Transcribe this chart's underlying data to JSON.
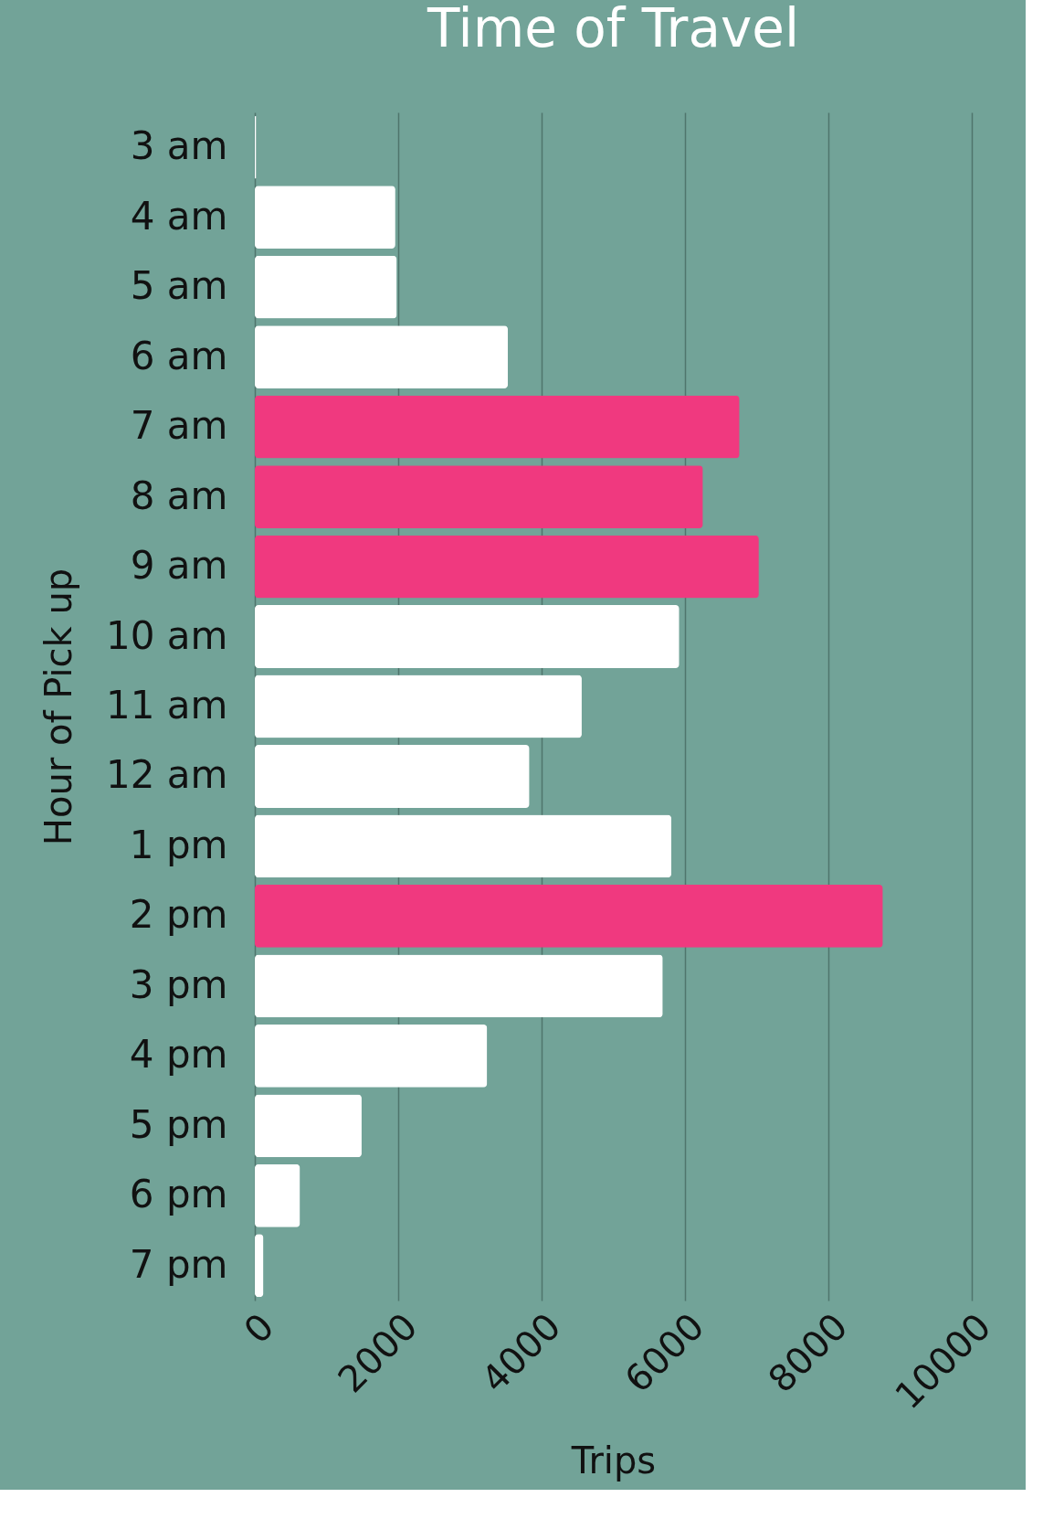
{
  "chart_data": {
    "type": "bar",
    "orientation": "horizontal",
    "title": "Time of Travel",
    "xlabel": "Trips",
    "ylabel": "Hour of Pick up",
    "categories": [
      "3 am",
      "4 am",
      "5 am",
      "6 am",
      "7 am",
      "8 am",
      "9 am",
      "10 am",
      "11 am",
      "12 am",
      "1 pm",
      "2 pm",
      "3 pm",
      "4 pm",
      "5 pm",
      "6 pm",
      "7 pm"
    ],
    "values": [
      20,
      1960,
      1980,
      3530,
      6760,
      6250,
      7030,
      5920,
      4560,
      3830,
      5810,
      8760,
      5690,
      3240,
      1490,
      630,
      120
    ],
    "colors": [
      "#ffffff",
      "#ffffff",
      "#ffffff",
      "#ffffff",
      "#f0397f",
      "#f0397f",
      "#f0397f",
      "#ffffff",
      "#ffffff",
      "#ffffff",
      "#ffffff",
      "#f0397f",
      "#ffffff",
      "#ffffff",
      "#ffffff",
      "#ffffff",
      "#ffffff"
    ],
    "xlim": [
      0,
      10000
    ],
    "xticks": [
      0,
      2000,
      4000,
      6000,
      8000,
      10000
    ],
    "grid": "x"
  }
}
